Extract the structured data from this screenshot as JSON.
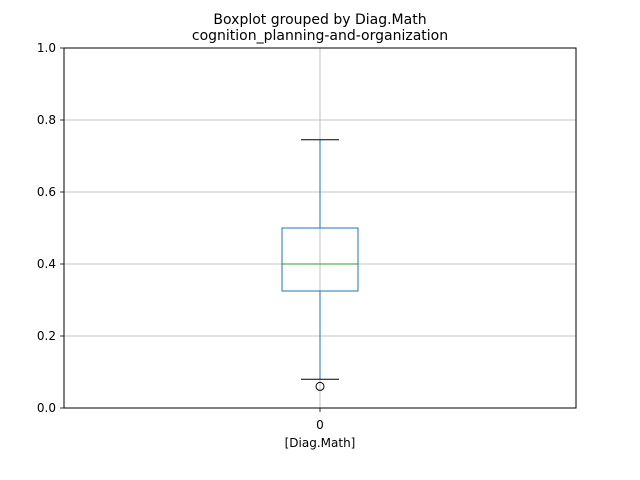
{
  "chart_data": {
    "type": "box",
    "suptitle": "Boxplot grouped by Diag.Math",
    "title": "cognition_planning-and-organization",
    "xlabel": "[Diag.Math]",
    "ylabel": "",
    "categories": [
      "0"
    ],
    "ylim": [
      0,
      1.0
    ],
    "yticks": [
      "0.0",
      "0.2",
      "0.4",
      "0.6",
      "0.8",
      "1.0"
    ],
    "grid": true,
    "boxes": [
      {
        "category": "0",
        "whisker_low": 0.08,
        "q1": 0.325,
        "median": 0.4,
        "q3": 0.5,
        "whisker_high": 0.745,
        "outliers": [
          0.06
        ]
      }
    ],
    "colors": {
      "box": "#1f77b4",
      "median": "#2ca02c",
      "caps": "#000000",
      "grid": "#b0b0b0"
    }
  }
}
